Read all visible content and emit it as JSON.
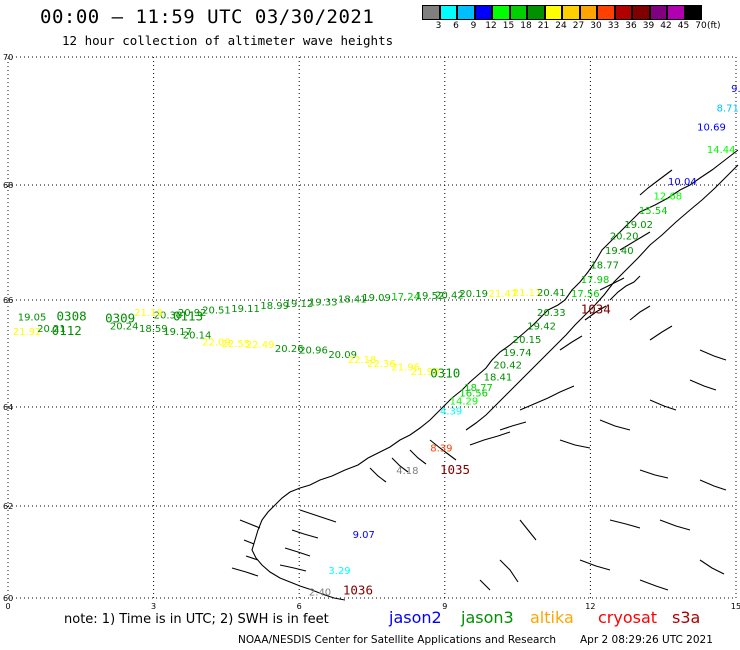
{
  "header": {
    "title": "00:00 – 11:59 UTC 03/30/2021",
    "subtitle": "12 hour collection of altimeter wave heights"
  },
  "colorbar": {
    "colors": [
      "#7f7f7f",
      "#00ffff",
      "#00bfff",
      "#0000ff",
      "#00ff00",
      "#00d000",
      "#009000",
      "#ffff00",
      "#ffd000",
      "#ffa500",
      "#ff4000",
      "#b00000",
      "#800000",
      "#800080",
      "#b000b0",
      "#000000"
    ],
    "labels": [
      "3",
      "6",
      "9",
      "12",
      "15",
      "18",
      "21",
      "24",
      "27",
      "30",
      "33",
      "36",
      "39",
      "42",
      "45",
      "70"
    ],
    "unit": "(ft)"
  },
  "axes": {
    "lat_labels": [
      "70",
      "68",
      "66",
      "64",
      "62",
      "60"
    ],
    "lon_labels": [
      "0",
      "3",
      "6",
      "9",
      "12",
      "15"
    ]
  },
  "passes": [
    {
      "text": "0308",
      "color": "#009000",
      "lat": 65.62,
      "lon": 1.0
    },
    {
      "text": "0112",
      "color": "#009000",
      "lat": 65.35,
      "lon": 0.9
    },
    {
      "text": "0309",
      "color": "#009000",
      "lat": 65.58,
      "lon": 2.0
    },
    {
      "text": "0113",
      "color": "#009000",
      "lat": 65.62,
      "lon": 3.4
    },
    {
      "text": "0310",
      "color": "#009000",
      "lat": 64.55,
      "lon": 8.7
    },
    {
      "text": "1034",
      "color": "#800000",
      "lat": 65.75,
      "lon": 11.8
    },
    {
      "text": "1035",
      "color": "#800000",
      "lat": 62.65,
      "lon": 8.9
    },
    {
      "text": "1036",
      "color": "#800000",
      "lat": 60.08,
      "lon": 6.9
    }
  ],
  "readings": [
    {
      "text": "9.",
      "color": "#0000ff",
      "lat": 69.45,
      "lon": 14.9
    },
    {
      "text": "8.71",
      "color": "#00bfff",
      "lat": 69.15,
      "lon": 14.6
    },
    {
      "text": "10.69",
      "color": "#0000ff",
      "lat": 68.85,
      "lon": 14.2
    },
    {
      "text": "14.44",
      "color": "#00ff00",
      "lat": 68.5,
      "lon": 14.4
    },
    {
      "text": "10.04",
      "color": "#0000ff",
      "lat": 68.0,
      "lon": 13.6
    },
    {
      "text": "12.68",
      "color": "#00ff00",
      "lat": 67.75,
      "lon": 13.3
    },
    {
      "text": "15.54",
      "color": "#00d000",
      "lat": 67.5,
      "lon": 13.0
    },
    {
      "text": "19.02",
      "color": "#009000",
      "lat": 67.25,
      "lon": 12.7
    },
    {
      "text": "20.20",
      "color": "#009000",
      "lat": 67.05,
      "lon": 12.4
    },
    {
      "text": "19.40",
      "color": "#009000",
      "lat": 66.8,
      "lon": 12.3
    },
    {
      "text": "18.77",
      "color": "#009000",
      "lat": 66.55,
      "lon": 12.0
    },
    {
      "text": "17.98",
      "color": "#00d000",
      "lat": 66.3,
      "lon": 11.8
    },
    {
      "text": "17.56",
      "color": "#00d000",
      "lat": 66.05,
      "lon": 11.6
    },
    {
      "text": "20.33",
      "color": "#009000",
      "lat": 65.7,
      "lon": 10.9
    },
    {
      "text": "19.42",
      "color": "#009000",
      "lat": 65.45,
      "lon": 10.7
    },
    {
      "text": "20.15",
      "color": "#009000",
      "lat": 65.2,
      "lon": 10.4
    },
    {
      "text": "19.74",
      "color": "#009000",
      "lat": 64.95,
      "lon": 10.2
    },
    {
      "text": "20.42",
      "color": "#009000",
      "lat": 64.72,
      "lon": 10.0
    },
    {
      "text": "18.41",
      "color": "#009000",
      "lat": 64.5,
      "lon": 9.8
    },
    {
      "text": "18.77",
      "color": "#00d000",
      "lat": 64.3,
      "lon": 9.4
    },
    {
      "text": "16.56",
      "color": "#00d000",
      "lat": 64.2,
      "lon": 9.3
    },
    {
      "text": "14.29",
      "color": "#00ff00",
      "lat": 64.05,
      "lon": 9.1
    },
    {
      "text": "4.39",
      "color": "#00ffff",
      "lat": 63.85,
      "lon": 8.9
    },
    {
      "text": "19.05",
      "color": "#009000",
      "lat": 65.62,
      "lon": 0.2
    },
    {
      "text": "21.92",
      "color": "#ffff00",
      "lat": 65.35,
      "lon": 0.1
    },
    {
      "text": "20.21",
      "color": "#009000",
      "lat": 65.4,
      "lon": 0.6
    },
    {
      "text": "20.30",
      "color": "#009000",
      "lat": 65.65,
      "lon": 3.0
    },
    {
      "text": "20.24",
      "color": "#009000",
      "lat": 65.45,
      "lon": 2.1
    },
    {
      "text": "18.59",
      "color": "#009000",
      "lat": 65.4,
      "lon": 2.7
    },
    {
      "text": "19.17",
      "color": "#009000",
      "lat": 65.35,
      "lon": 3.2
    },
    {
      "text": "20.14",
      "color": "#009000",
      "lat": 65.28,
      "lon": 3.6
    },
    {
      "text": "20.92",
      "color": "#009000",
      "lat": 65.7,
      "lon": 3.5
    },
    {
      "text": "20.51",
      "color": "#009000",
      "lat": 65.75,
      "lon": 4.0
    },
    {
      "text": "19.11",
      "color": "#009000",
      "lat": 65.78,
      "lon": 4.6
    },
    {
      "text": "18.99",
      "color": "#009000",
      "lat": 65.83,
      "lon": 5.2
    },
    {
      "text": "19.12",
      "color": "#009000",
      "lat": 65.87,
      "lon": 5.7
    },
    {
      "text": "19.33",
      "color": "#009000",
      "lat": 65.9,
      "lon": 6.2
    },
    {
      "text": "18.41",
      "color": "#009000",
      "lat": 65.95,
      "lon": 6.8
    },
    {
      "text": "19.09",
      "color": "#009000",
      "lat": 65.98,
      "lon": 7.3
    },
    {
      "text": "17.24",
      "color": "#00d000",
      "lat": 66.0,
      "lon": 7.9
    },
    {
      "text": "19.52",
      "color": "#009000",
      "lat": 66.02,
      "lon": 8.4
    },
    {
      "text": "20.42",
      "color": "#009000",
      "lat": 66.03,
      "lon": 8.8
    },
    {
      "text": "20.19",
      "color": "#009000",
      "lat": 66.05,
      "lon": 9.3
    },
    {
      "text": "21.47",
      "color": "#ffff00",
      "lat": 66.05,
      "lon": 9.9
    },
    {
      "text": "21.11",
      "color": "#ffff00",
      "lat": 66.07,
      "lon": 10.4
    },
    {
      "text": "20.41",
      "color": "#009000",
      "lat": 66.07,
      "lon": 10.9
    },
    {
      "text": "21.18",
      "color": "#ffff00",
      "lat": 65.7,
      "lon": 2.6
    },
    {
      "text": "22.09",
      "color": "#ffff00",
      "lat": 65.15,
      "lon": 4.0
    },
    {
      "text": "22.55",
      "color": "#ffff00",
      "lat": 65.12,
      "lon": 4.4
    },
    {
      "text": "22.49",
      "color": "#ffff00",
      "lat": 65.1,
      "lon": 4.9
    },
    {
      "text": "20.26",
      "color": "#009000",
      "lat": 65.03,
      "lon": 5.5
    },
    {
      "text": "20.96",
      "color": "#009000",
      "lat": 65.0,
      "lon": 6.0
    },
    {
      "text": "20.09",
      "color": "#009000",
      "lat": 64.92,
      "lon": 6.6
    },
    {
      "text": "22.18",
      "color": "#ffff00",
      "lat": 64.82,
      "lon": 7.0
    },
    {
      "text": "22.36",
      "color": "#ffff00",
      "lat": 64.75,
      "lon": 7.4
    },
    {
      "text": "21.96",
      "color": "#ffff00",
      "lat": 64.68,
      "lon": 7.9
    },
    {
      "text": "21.99",
      "color": "#ffff00",
      "lat": 64.6,
      "lon": 8.3
    },
    {
      "text": "8.39",
      "color": "#ff4000",
      "lat": 63.1,
      "lon": 8.7
    },
    {
      "text": "4.18",
      "color": "#7f7f7f",
      "lat": 62.65,
      "lon": 8.0
    },
    {
      "text": "9.07",
      "color": "#0000ff",
      "lat": 61.3,
      "lon": 7.1
    },
    {
      "text": "3.29",
      "color": "#00ffff",
      "lat": 60.52,
      "lon": 6.6
    },
    {
      "text": "2.40",
      "color": "#7f7f7f",
      "lat": 60.05,
      "lon": 6.2
    }
  ],
  "footer": {
    "note": "note: 1) Time is in UTC; 2) SWH is in feet",
    "legend": [
      {
        "label": "jason2",
        "color": "#0000ff"
      },
      {
        "label": "jason3",
        "color": "#009000"
      },
      {
        "label": "altika",
        "color": "#ffa500"
      },
      {
        "label": "cryosat",
        "color": "#ff0000"
      },
      {
        "label": "s3a",
        "color": "#b00000"
      }
    ],
    "credit": "NOAA/NESDIS Center for Satellite Applications and Research",
    "date": "Apr  2 08:29:26 UTC 2021"
  }
}
